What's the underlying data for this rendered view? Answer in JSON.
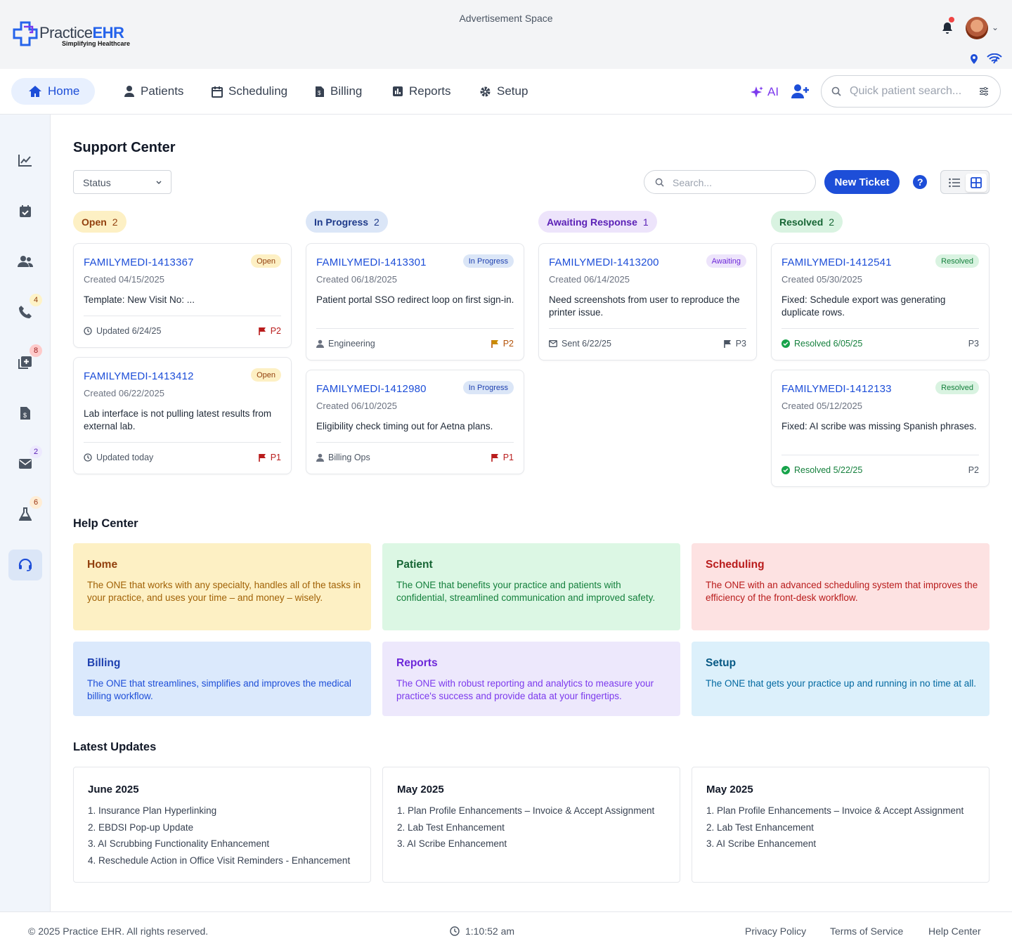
{
  "header": {
    "logo_text_a": "Practice",
    "logo_text_b": "EHR",
    "logo_tagline": "Simplifying Healthcare",
    "ad_space": "Advertisement Space"
  },
  "nav": {
    "items": [
      {
        "label": "Home",
        "icon": "home-icon",
        "active": true
      },
      {
        "label": "Patients",
        "icon": "patients-icon"
      },
      {
        "label": "Scheduling",
        "icon": "calendar-icon"
      },
      {
        "label": "Billing",
        "icon": "billing-icon"
      },
      {
        "label": "Reports",
        "icon": "reports-icon"
      },
      {
        "label": "Setup",
        "icon": "gear-icon"
      }
    ],
    "ai_label": "AI",
    "quick_search_placeholder": "Quick patient search..."
  },
  "sidebar": {
    "badges": {
      "calls": "4",
      "messages_add": "8",
      "mail": "2",
      "lab": "6"
    }
  },
  "support": {
    "title": "Support Center",
    "status_filter": "Status",
    "search_placeholder": "Search...",
    "new_ticket_label": "New Ticket",
    "columns": [
      {
        "label": "Open",
        "count": "2"
      },
      {
        "label": "In Progress",
        "count": "2"
      },
      {
        "label": "Awaiting Response",
        "count": "1"
      },
      {
        "label": "Resolved",
        "count": "2"
      }
    ],
    "tickets": [
      {
        "id": "FAMILYMEDI-1413367",
        "badge": "Open",
        "created": "Created 04/15/2025",
        "desc": "Template: New Visit No: ...",
        "meta": "Updated 6/24/25",
        "priority": "P2"
      },
      {
        "id": "FAMILYMEDI-1413412",
        "badge": "Open",
        "created": "Created 06/22/2025",
        "desc": "Lab interface is not pulling latest results from external lab.",
        "meta": "Updated today",
        "priority": "P1"
      },
      {
        "id": "FAMILYMEDI-1413301",
        "badge": "In Progress",
        "created": "Created 06/18/2025",
        "desc": "Patient portal SSO redirect loop on first sign-in.",
        "meta": "Engineering",
        "priority": "P2"
      },
      {
        "id": "FAMILYMEDI-1412980",
        "badge": "In Progress",
        "created": "Created 06/10/2025",
        "desc": "Eligibility check timing out for Aetna plans.",
        "meta": "Billing Ops",
        "priority": "P1"
      },
      {
        "id": "FAMILYMEDI-1413200",
        "badge": "Awaiting",
        "created": "Created 06/14/2025",
        "desc": "Need screenshots from user to reproduce the printer issue.",
        "meta": "Sent 6/22/25",
        "priority": "P3"
      },
      {
        "id": "FAMILYMEDI-1412541",
        "badge": "Resolved",
        "created": "Created 05/30/2025",
        "desc": "Fixed: Schedule export was generating duplicate rows.",
        "meta": "Resolved 6/05/25",
        "priority": "P3"
      },
      {
        "id": "FAMILYMEDI-1412133",
        "badge": "Resolved",
        "created": "Created 05/12/2025",
        "desc": "Fixed: AI scribe was missing Spanish phrases.",
        "meta": "Resolved 5/22/25",
        "priority": "P2"
      }
    ]
  },
  "help_center": {
    "title": "Help Center",
    "cards": [
      {
        "title": "Home",
        "desc": "The ONE that works with any specialty, handles all of the tasks in your practice, and uses your time – and money – wisely."
      },
      {
        "title": "Patient",
        "desc": "The ONE that benefits your practice and patients with confidential, streamlined communication and improved safety."
      },
      {
        "title": "Scheduling",
        "desc": "The ONE with an advanced scheduling system that improves the efficiency of the front-desk workflow."
      },
      {
        "title": "Billing",
        "desc": "The ONE that streamlines, simplifies and improves the medical billing workflow."
      },
      {
        "title": "Reports",
        "desc": "The ONE with robust reporting and analytics to measure your practice's success and provide data at your fingertips."
      },
      {
        "title": "Setup",
        "desc": "The ONE that gets your practice up and running in no time at all."
      }
    ]
  },
  "latest_updates": {
    "title": "Latest Updates",
    "cards": [
      {
        "month": "June 2025",
        "items": [
          "1. Insurance Plan Hyperlinking",
          "2. EBDSI Pop-up Update",
          "3. AI Scrubbing Functionality Enhancement",
          "4. Reschedule Action in Office Visit Reminders - Enhancement"
        ]
      },
      {
        "month": "May 2025",
        "items": [
          "1. Plan Profile Enhancements – Invoice & Accept Assignment",
          "2. Lab Test Enhancement",
          "3. AI Scribe Enhancement"
        ]
      },
      {
        "month": "May 2025",
        "items": [
          "1. Plan Profile Enhancements – Invoice & Accept Assignment",
          "2. Lab Test Enhancement",
          "3. AI Scribe Enhancement"
        ]
      }
    ]
  },
  "footer": {
    "copyright": "© 2025 Practice EHR. All rights reserved.",
    "time": "1:10:52 am",
    "links": [
      "Privacy Policy",
      "Terms of Service",
      "Help Center"
    ]
  },
  "colors": {
    "primary": "#1d4ed8",
    "open_bg": "#fdf0c4",
    "open_fg": "#92400e",
    "progress_bg": "#dbe6f7",
    "progress_fg": "#1e3a8a",
    "awaiting_bg": "#ede4fb",
    "awaiting_fg": "#5b21b6",
    "resolved_bg": "#d9f3e1",
    "resolved_fg": "#166534"
  }
}
